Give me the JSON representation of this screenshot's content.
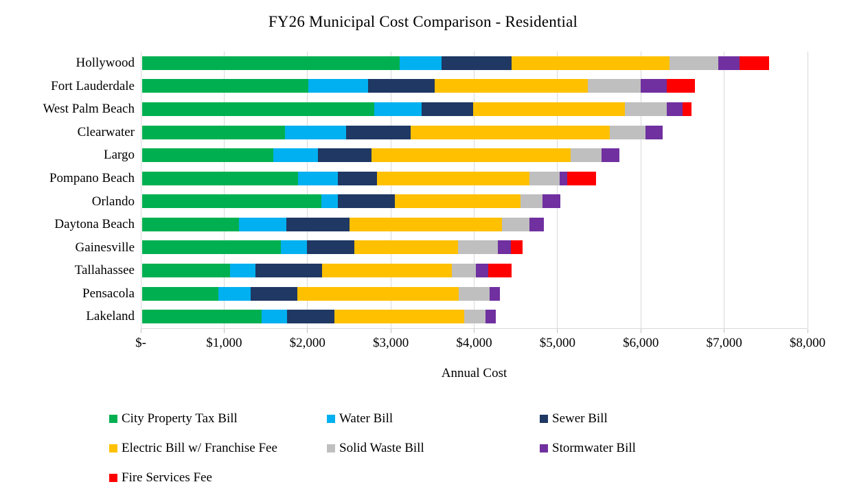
{
  "title": "FY26 Municipal Cost Comparison - Residential",
  "axis": {
    "xlabel": "Annual Cost",
    "tick_labels": [
      "$-",
      "$1,000",
      "$2,000",
      "$3,000",
      "$4,000",
      "$5,000",
      "$6,000",
      "$7,000",
      "$8,000"
    ],
    "min": 0,
    "max": 8000
  },
  "chart_data": {
    "type": "bar",
    "orientation": "horizontal",
    "stacked": true,
    "title": "FY26 Municipal Cost Comparison - Residential",
    "xlabel": "Annual Cost",
    "xlim": [
      0,
      8000
    ],
    "x_tick_labels": [
      "$-",
      "$1,000",
      "$2,000",
      "$3,000",
      "$4,000",
      "$5,000",
      "$6,000",
      "$7,000",
      "$8,000"
    ],
    "grid": "vertical-major-every-1000",
    "legend_position": "bottom",
    "categories": [
      "Hollywood",
      "Fort Lauderdale",
      "West Palm Beach",
      "Clearwater",
      "Largo",
      "Pompano Beach",
      "Orlando",
      "Daytona Beach",
      "Gainesville",
      "Tallahassee",
      "Pensacola",
      "Lakeland"
    ],
    "series": [
      {
        "name": "City Property Tax Bill",
        "color": "#00B050",
        "values": [
          3100,
          2000,
          2790,
          1715,
          1580,
          1870,
          2155,
          1165,
          1665,
          1060,
          915,
          1435
        ]
      },
      {
        "name": "Water Bill",
        "color": "#00B0F0",
        "values": [
          500,
          720,
          570,
          735,
          535,
          485,
          200,
          570,
          315,
          305,
          390,
          310
        ]
      },
      {
        "name": "Sewer Bill",
        "color": "#1F3864",
        "values": [
          840,
          800,
          620,
          780,
          645,
          465,
          685,
          755,
          570,
          800,
          565,
          570
        ]
      },
      {
        "name": "Electric Bill w/ Franchise Fee",
        "color": "#FFC000",
        "values": [
          1900,
          1840,
          1825,
          2390,
          2390,
          1835,
          1510,
          1835,
          1250,
          1560,
          1935,
          1560
        ]
      },
      {
        "name": "Solid Waste Bill",
        "color": "#BFBFBF",
        "values": [
          590,
          630,
          500,
          435,
          370,
          365,
          265,
          335,
          480,
          290,
          370,
          250
        ]
      },
      {
        "name": "Stormwater Bill",
        "color": "#7030A0",
        "values": [
          250,
          320,
          190,
          200,
          215,
          90,
          210,
          170,
          150,
          150,
          125,
          125
        ]
      },
      {
        "name": "Fire Services Fee",
        "color": "#FF0000",
        "values": [
          360,
          335,
          110,
          0,
          0,
          350,
          0,
          0,
          145,
          275,
          0,
          0
        ]
      }
    ],
    "totals": [
      7540,
      6645,
      6605,
      6255,
      5735,
      5460,
      5025,
      4830,
      4575,
      4440,
      4300,
      4250
    ]
  }
}
